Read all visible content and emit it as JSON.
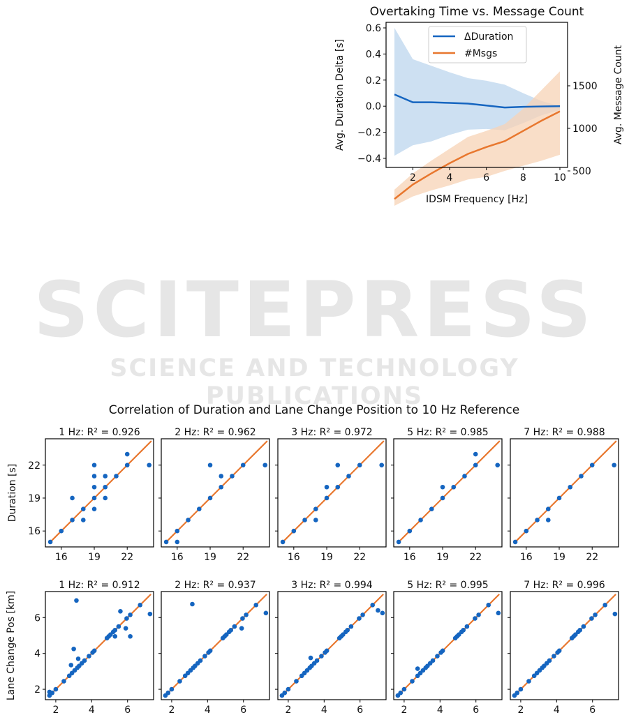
{
  "watermark": {
    "main": "SCITEPRESS",
    "sub": "SCIENCE AND TECHNOLOGY PUBLICATIONS"
  },
  "colors": {
    "blue": "#1565c0",
    "orange": "#e8772e",
    "blue_band": "#bcd6ee",
    "orange_band": "#f7d3b6"
  },
  "chart_data": [
    {
      "type": "line",
      "title": "Overtaking Time vs. Message Count",
      "xlabel": "IDSM Frequency [Hz]",
      "ylabel": "Avg. Duration Delta [s]",
      "y2label": "Avg. Message Count",
      "x": [
        1,
        2,
        3,
        4,
        5,
        6,
        7,
        8,
        9,
        10
      ],
      "xticks": [
        "2",
        "4",
        "6",
        "8",
        "10"
      ],
      "yticks": [
        "0.6",
        "0.4",
        "0.2",
        "0.0",
        "−0.2",
        "−0.4"
      ],
      "y2ticks": [
        "1500",
        "1000",
        "500"
      ],
      "legend": {
        "placement": "top-center",
        "entries": [
          "ΔDuration",
          "#Msgs"
        ]
      },
      "series": [
        {
          "name": "ΔDuration",
          "axis": "left",
          "values": [
            0.09,
            0.03,
            0.03,
            0.025,
            0.02,
            0.005,
            -0.01,
            -0.005,
            -0.002,
            0.0
          ],
          "upper": [
            0.6,
            0.36,
            0.31,
            0.26,
            0.215,
            0.195,
            0.165,
            0.1,
            0.04,
            0.0
          ],
          "lower": [
            -0.38,
            -0.3,
            -0.27,
            -0.22,
            -0.18,
            -0.175,
            -0.185,
            -0.13,
            -0.07,
            -0.03
          ]
        },
        {
          "name": "#Msgs",
          "axis": "right",
          "values": [
            170,
            340,
            470,
            590,
            700,
            780,
            850,
            970,
            1090,
            1200
          ],
          "upper": [
            280,
            470,
            620,
            760,
            900,
            970,
            1050,
            1230,
            1450,
            1670
          ],
          "lower": [
            90,
            200,
            270,
            330,
            400,
            430,
            500,
            560,
            620,
            690
          ]
        }
      ]
    },
    {
      "type": "scatter",
      "title": "Correlation of Duration and Lane Change Position to 10 Hz Reference",
      "rows": [
        {
          "ylabel": "Duration [s]",
          "ticks": [
            "16",
            "19",
            "22"
          ],
          "tick_values": [
            16,
            19,
            22
          ],
          "range": [
            14.55,
            24.4
          ],
          "fit": [
            15,
            24.2
          ],
          "panels": [
            {
              "title": "1 Hz: R² = 0.926",
              "points": [
                [
                  15,
                  15
                ],
                [
                  16,
                  16
                ],
                [
                  17,
                  17
                ],
                [
                  17,
                  19
                ],
                [
                  18,
                  18
                ],
                [
                  18,
                  17
                ],
                [
                  19,
                  19
                ],
                [
                  19,
                  18
                ],
                [
                  19,
                  20
                ],
                [
                  19,
                  21
                ],
                [
                  19,
                  22
                ],
                [
                  20,
                  20
                ],
                [
                  20,
                  21
                ],
                [
                  20,
                  19
                ],
                [
                  21,
                  21
                ],
                [
                  22,
                  22
                ],
                [
                  22,
                  23
                ],
                [
                  24,
                  22
                ]
              ]
            },
            {
              "title": "2 Hz: R² = 0.962",
              "points": [
                [
                  15,
                  15
                ],
                [
                  16,
                  16
                ],
                [
                  16,
                  15
                ],
                [
                  17,
                  17
                ],
                [
                  18,
                  18
                ],
                [
                  19,
                  19
                ],
                [
                  19,
                  22
                ],
                [
                  20,
                  20
                ],
                [
                  20,
                  21
                ],
                [
                  21,
                  21
                ],
                [
                  22,
                  22
                ],
                [
                  24,
                  22
                ]
              ]
            },
            {
              "title": "3 Hz: R² = 0.972",
              "points": [
                [
                  15,
                  15
                ],
                [
                  16,
                  16
                ],
                [
                  17,
                  17
                ],
                [
                  18,
                  18
                ],
                [
                  18,
                  17
                ],
                [
                  19,
                  19
                ],
                [
                  19,
                  20
                ],
                [
                  20,
                  20
                ],
                [
                  20,
                  22
                ],
                [
                  21,
                  21
                ],
                [
                  22,
                  22
                ],
                [
                  24,
                  22
                ]
              ]
            },
            {
              "title": "5 Hz: R² = 0.985",
              "points": [
                [
                  15,
                  15
                ],
                [
                  16,
                  16
                ],
                [
                  17,
                  17
                ],
                [
                  18,
                  18
                ],
                [
                  19,
                  19
                ],
                [
                  19,
                  20
                ],
                [
                  20,
                  20
                ],
                [
                  21,
                  21
                ],
                [
                  22,
                  22
                ],
                [
                  22,
                  23
                ],
                [
                  24,
                  22
                ]
              ]
            },
            {
              "title": "7 Hz: R² = 0.988",
              "points": [
                [
                  15,
                  15
                ],
                [
                  16,
                  16
                ],
                [
                  17,
                  17
                ],
                [
                  18,
                  18
                ],
                [
                  18,
                  17
                ],
                [
                  19,
                  19
                ],
                [
                  20,
                  20
                ],
                [
                  21,
                  21
                ],
                [
                  22,
                  22
                ],
                [
                  24,
                  22
                ]
              ]
            }
          ]
        },
        {
          "ylabel": "Lane Change Pos [km]",
          "ticks": [
            "2",
            "4",
            "6"
          ],
          "tick_values": [
            2,
            4,
            6
          ],
          "range": [
            1.42,
            7.45
          ],
          "fit": [
            1.6,
            7.3
          ],
          "base_x": [
            1.65,
            1.8,
            2.0,
            2.45,
            2.75,
            2.9,
            3.05,
            3.2,
            3.3,
            3.45,
            3.6,
            3.85,
            4.05,
            4.15,
            4.85,
            4.95,
            5.05,
            5.2,
            5.3,
            5.5,
            5.95,
            6.15,
            6.7
          ],
          "panels": [
            {
              "title": "1 Hz: R² = 0.912",
              "outliers": [
                [
                  3.15,
                  6.95
                ],
                [
                  3.0,
                  4.25
                ],
                [
                  2.85,
                  3.35
                ],
                [
                  5.6,
                  6.35
                ],
                [
                  5.9,
                  5.4
                ],
                [
                  6.15,
                  4.95
                ],
                [
                  5.3,
                  4.95
                ],
                [
                  7.25,
                  6.2
                ],
                [
                  3.25,
                  3.7
                ],
                [
                  1.65,
                  1.85
                ]
              ]
            },
            {
              "title": "2 Hz: R² = 0.937",
              "outliers": [
                [
                  3.15,
                  6.75
                ],
                [
                  5.9,
                  5.4
                ],
                [
                  7.25,
                  6.25
                ]
              ]
            },
            {
              "title": "3 Hz: R² = 0.994",
              "outliers": [
                [
                  7.25,
                  6.25
                ],
                [
                  7.0,
                  6.4
                ],
                [
                  3.25,
                  3.75
                ]
              ]
            },
            {
              "title": "5 Hz: R² = 0.995",
              "outliers": [
                [
                  7.25,
                  6.25
                ],
                [
                  2.75,
                  3.15
                ]
              ]
            },
            {
              "title": "7 Hz: R² = 0.996",
              "outliers": [
                [
                  7.25,
                  6.2
                ]
              ]
            }
          ]
        }
      ]
    }
  ]
}
